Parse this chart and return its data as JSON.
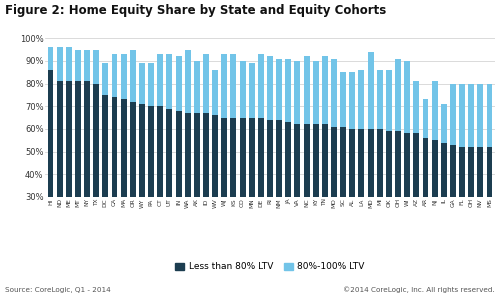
{
  "title": "Figure 2: Home Equity Share by State and Equity Cohorts",
  "states": [
    "HI",
    "ND",
    "ME",
    "MT",
    "NY",
    "TX",
    "DC",
    "CA",
    "MA",
    "OR",
    "WY",
    "PA",
    "CT",
    "UT",
    "IN",
    "WA",
    "AK",
    "ID",
    "WV",
    "WJ",
    "KS",
    "CO",
    "MN",
    "DE",
    "RI",
    "NM",
    "JA",
    "VA",
    "NC",
    "KY",
    "TN",
    "MO",
    "SC",
    "AL",
    "LA",
    "MD",
    "MI",
    "OK",
    "OH",
    "WI",
    "AZ",
    "AR",
    "NJ",
    "IL",
    "GA",
    "FL",
    "OH",
    "NV",
    "MS"
  ],
  "less_than_80": [
    86,
    81,
    81,
    81,
    81,
    80,
    75,
    74,
    73,
    72,
    71,
    70,
    70,
    69,
    68,
    67,
    67,
    67,
    66,
    65,
    65,
    65,
    65,
    65,
    64,
    64,
    63,
    62,
    62,
    62,
    62,
    61,
    61,
    60,
    60,
    60,
    60,
    59,
    59,
    58,
    58,
    56,
    55,
    54,
    53,
    52,
    52,
    52,
    52
  ],
  "totals": [
    96,
    96,
    96,
    95,
    95,
    95,
    89,
    93,
    93,
    95,
    89,
    89,
    93,
    93,
    92,
    95,
    90,
    93,
    86,
    93,
    93,
    90,
    89,
    93,
    92,
    91,
    91,
    90,
    92,
    90,
    92,
    91,
    85,
    85,
    86,
    94,
    86,
    86,
    91,
    90,
    81,
    73,
    81,
    71,
    80,
    80,
    80,
    80,
    80
  ],
  "color_dark": "#1c3d50",
  "color_light": "#72c4e8",
  "bg_color": "#ffffff",
  "ymin": 30,
  "ymax": 100,
  "source_left": "Source: CoreLogic, Q1 - 2014",
  "source_right": "©2014 CoreLogic, Inc. All rights reserved.",
  "legend_label1": "Less than 80% LTV",
  "legend_label2": "80%-100% LTV"
}
